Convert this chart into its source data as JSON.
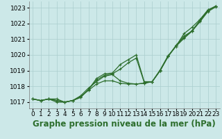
{
  "title": "Graphe pression niveau de la mer (hPa)",
  "hours": [
    0,
    1,
    2,
    3,
    4,
    5,
    6,
    7,
    8,
    9,
    10,
    11,
    12,
    13,
    14,
    15,
    16,
    17,
    18,
    19,
    20,
    21,
    22,
    23
  ],
  "line1": [
    1017.2,
    1017.1,
    1017.2,
    1017.1,
    1017.0,
    1017.1,
    1017.3,
    1017.8,
    1018.5,
    1018.8,
    1018.85,
    1019.4,
    1019.7,
    1020.0,
    1018.3,
    1018.3,
    1019.0,
    1019.9,
    1020.6,
    1021.2,
    1021.5,
    1022.2,
    1022.85,
    1023.1
  ],
  "line2": [
    1017.2,
    1017.1,
    1017.2,
    1017.1,
    1017.0,
    1017.1,
    1017.3,
    1017.8,
    1018.4,
    1018.7,
    1018.8,
    1019.1,
    1019.5,
    1019.8,
    1018.25,
    1018.3,
    1019.0,
    1019.9,
    1020.6,
    1021.1,
    1021.55,
    1022.15,
    1022.8,
    1023.1
  ],
  "line3": [
    1017.2,
    1017.1,
    1017.2,
    1017.0,
    1017.0,
    1017.1,
    1017.4,
    1017.9,
    1018.3,
    1018.65,
    1018.75,
    1018.35,
    1018.2,
    1018.15,
    1018.2,
    1018.3,
    1019.05,
    1019.95,
    1020.55,
    1021.35,
    1021.75,
    1022.25,
    1022.85,
    1023.1
  ],
  "line4": [
    1017.2,
    1017.1,
    1017.2,
    1017.2,
    1017.0,
    1017.1,
    1017.35,
    1017.75,
    1018.15,
    1018.35,
    1018.35,
    1018.2,
    1018.15,
    1018.15,
    1018.2,
    1018.3,
    1019.0,
    1019.9,
    1020.55,
    1021.05,
    1021.5,
    1022.1,
    1022.75,
    1023.05
  ],
  "line_color": "#2d6e2d",
  "bg_color": "#cce8e8",
  "grid_color": "#aacece",
  "ylim": [
    1016.6,
    1023.4
  ],
  "yticks": [
    1017,
    1018,
    1019,
    1020,
    1021,
    1022,
    1023
  ],
  "tick_fontsize": 6.5,
  "title_fontsize": 8.5,
  "linewidth": 0.9,
  "markersize": 3.5,
  "markeredgewidth": 0.8
}
